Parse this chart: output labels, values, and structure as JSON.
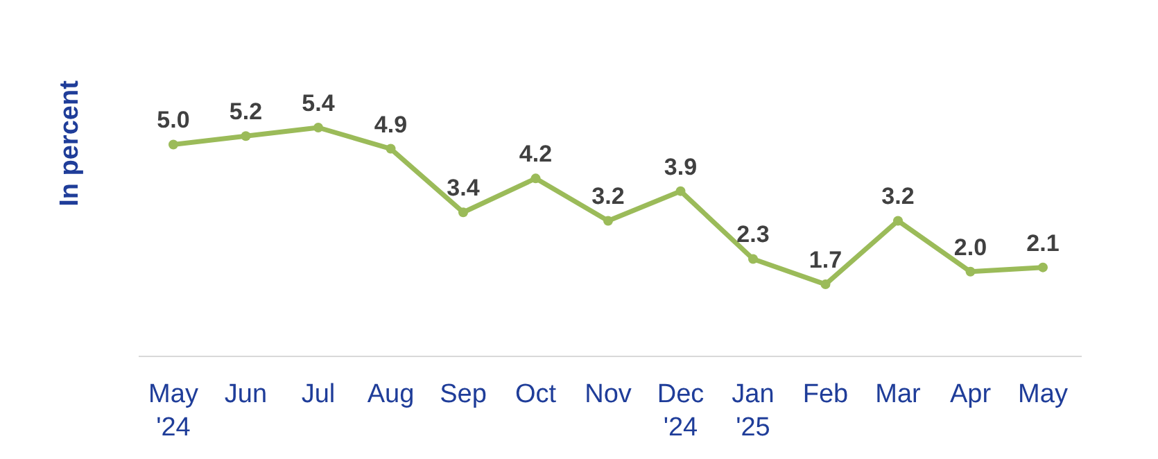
{
  "chart_data": {
    "type": "line",
    "ylabel": "In percent",
    "categories": [
      "May '24",
      "Jun",
      "Jul",
      "Aug",
      "Sep",
      "Oct",
      "Nov",
      "Dec '24",
      "Jan '25",
      "Feb",
      "Mar",
      "Apr",
      "May"
    ],
    "series": [
      {
        "color": "#9bbb59",
        "values": [
          5.0,
          5.2,
          5.4,
          4.9,
          3.4,
          4.2,
          3.2,
          3.9,
          2.3,
          1.7,
          3.2,
          2.0,
          2.1
        ],
        "value_labels": [
          "5.0",
          "5.2",
          "5.4",
          "4.9",
          "3.4",
          "4.2",
          "3.2",
          "3.9",
          "2.3",
          "1.7",
          "3.2",
          "2.0",
          "2.1"
        ]
      }
    ],
    "tick_labels": "x",
    "marker": "circle"
  }
}
